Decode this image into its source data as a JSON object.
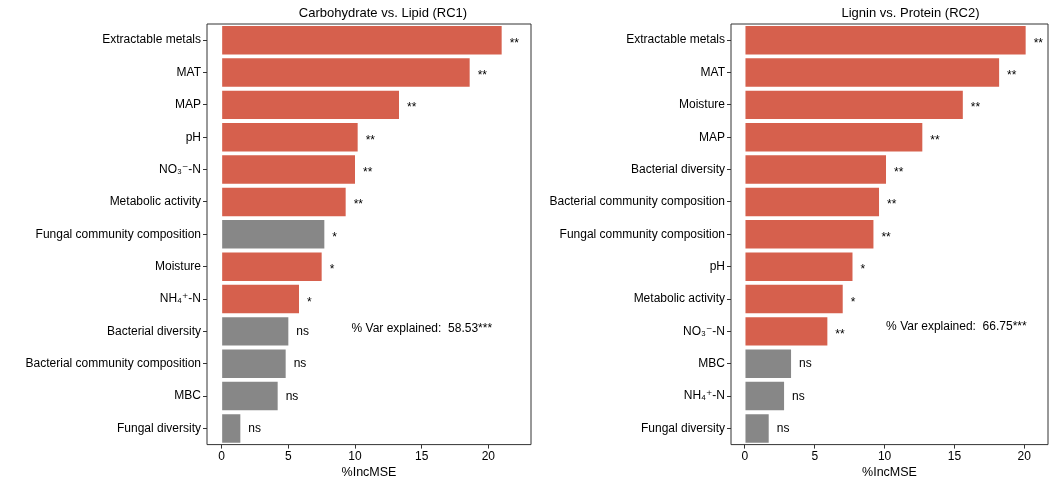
{
  "chart_data": [
    {
      "type": "bar",
      "orientation": "horizontal",
      "title": "Carbohydrate vs. Lipid (RC1)",
      "xlabel": "%IncMSE",
      "categories": [
        "Extractable metals",
        "MAT",
        "MAP",
        "pH",
        "NO₃⁻-N",
        "Metabolic activity",
        "Fungal community composition",
        "Moisture",
        "NH₄⁺-N",
        "Bacterial diversity",
        "Bacterial community composition",
        "MBC",
        "Fungal diversity"
      ],
      "values": [
        21.0,
        18.6,
        13.3,
        10.2,
        10.0,
        9.3,
        7.7,
        7.5,
        5.8,
        5.0,
        4.8,
        4.2,
        1.4
      ],
      "colors": [
        "#d6604d",
        "#d6604d",
        "#d6604d",
        "#d6604d",
        "#d6604d",
        "#d6604d",
        "#878787",
        "#d6604d",
        "#d6604d",
        "#878787",
        "#878787",
        "#878787",
        "#878787"
      ],
      "value_labels": [
        "**",
        "**",
        "**",
        "**",
        "**",
        "**",
        "*",
        "*",
        "*",
        "ns",
        "ns",
        "ns",
        "ns"
      ],
      "xlim": [
        -1.1,
        23.2
      ],
      "xticks": [
        0,
        5,
        10,
        15,
        20
      ],
      "grid": false,
      "legend": false,
      "annotations": [
        "% Var explained:  58.53***"
      ]
    },
    {
      "type": "bar",
      "orientation": "horizontal",
      "title": "Lignin vs. Protein (RC2)",
      "xlabel": "%IncMSE",
      "categories": [
        "Extractable metals",
        "MAT",
        "Moisture",
        "MAP",
        "Bacterial diversity",
        "Bacterial community composition",
        "Fungal community composition",
        "pH",
        "Metabolic activity",
        "NO₃⁻-N",
        "MBC",
        "NH₄⁺-N",
        "Fungal diversity"
      ],
      "values": [
        20.1,
        18.2,
        15.6,
        12.7,
        10.1,
        9.6,
        9.2,
        7.7,
        7.0,
        5.9,
        3.3,
        2.8,
        1.7
      ],
      "colors": [
        "#d6604d",
        "#d6604d",
        "#d6604d",
        "#d6604d",
        "#d6604d",
        "#d6604d",
        "#d6604d",
        "#d6604d",
        "#d6604d",
        "#d6604d",
        "#878787",
        "#878787",
        "#878787"
      ],
      "value_labels": [
        "**",
        "**",
        "**",
        "**",
        "**",
        "**",
        "**",
        "*",
        "*",
        "**",
        "ns",
        "ns",
        "ns"
      ],
      "xlim": [
        -1.0,
        21.7
      ],
      "xticks": [
        0,
        5,
        10,
        15,
        20
      ],
      "grid": false,
      "legend": false,
      "annotations": [
        "% Var explained:  66.75***"
      ]
    }
  ]
}
